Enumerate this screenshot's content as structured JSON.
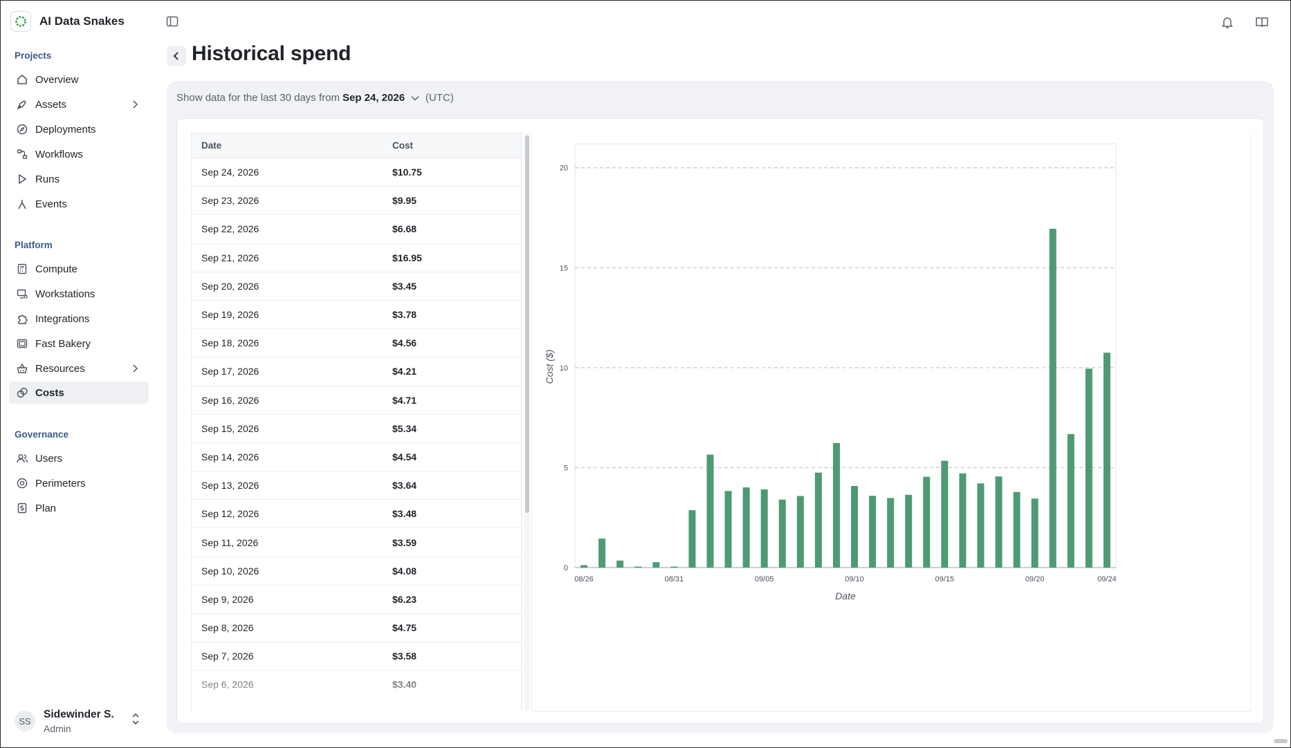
{
  "app": {
    "name": "AI Data Snakes"
  },
  "sidebar": {
    "sections": [
      {
        "label": "Projects",
        "items": [
          {
            "label": "Overview",
            "icon": "home-icon"
          },
          {
            "label": "Assets",
            "icon": "pen-nib-icon",
            "has_children": true
          },
          {
            "label": "Deployments",
            "icon": "compass-icon"
          },
          {
            "label": "Workflows",
            "icon": "workflow-icon"
          },
          {
            "label": "Runs",
            "icon": "play-icon"
          },
          {
            "label": "Events",
            "icon": "event-icon"
          }
        ]
      },
      {
        "label": "Platform",
        "items": [
          {
            "label": "Compute",
            "icon": "calculator-icon"
          },
          {
            "label": "Workstations",
            "icon": "workstation-icon"
          },
          {
            "label": "Integrations",
            "icon": "puzzle-icon"
          },
          {
            "label": "Fast Bakery",
            "icon": "bakery-icon"
          },
          {
            "label": "Resources",
            "icon": "basket-icon",
            "has_children": true
          },
          {
            "label": "Costs",
            "icon": "coins-icon",
            "active": true
          }
        ]
      },
      {
        "label": "Governance",
        "items": [
          {
            "label": "Users",
            "icon": "users-icon"
          },
          {
            "label": "Perimeters",
            "icon": "perimeter-icon"
          },
          {
            "label": "Plan",
            "icon": "dollar-doc-icon"
          }
        ]
      }
    ],
    "user": {
      "initials": "SS",
      "name": "Sidewinder S.",
      "role": "Admin"
    }
  },
  "header": {
    "title": "Historical spend"
  },
  "filter": {
    "prefix": "Show data for the last 30 days from",
    "date": "Sep 24, 2026",
    "timezone": "(UTC)"
  },
  "table": {
    "columns": [
      "Date",
      "Cost"
    ],
    "rows": [
      [
        "Sep 24, 2026",
        "$10.75"
      ],
      [
        "Sep 23, 2026",
        "$9.95"
      ],
      [
        "Sep 22, 2026",
        "$6.68"
      ],
      [
        "Sep 21, 2026",
        "$16.95"
      ],
      [
        "Sep 20, 2026",
        "$3.45"
      ],
      [
        "Sep 19, 2026",
        "$3.78"
      ],
      [
        "Sep 18, 2026",
        "$4.56"
      ],
      [
        "Sep 17, 2026",
        "$4.21"
      ],
      [
        "Sep 16, 2026",
        "$4.71"
      ],
      [
        "Sep 15, 2026",
        "$5.34"
      ],
      [
        "Sep 14, 2026",
        "$4.54"
      ],
      [
        "Sep 13, 2026",
        "$3.64"
      ],
      [
        "Sep 12, 2026",
        "$3.48"
      ],
      [
        "Sep 11, 2026",
        "$3.59"
      ],
      [
        "Sep 10, 2026",
        "$4.08"
      ],
      [
        "Sep 9, 2026",
        "$6.23"
      ],
      [
        "Sep 8, 2026",
        "$4.75"
      ],
      [
        "Sep 7, 2026",
        "$3.58"
      ],
      [
        "Sep 6, 2026",
        "$3.40"
      ]
    ]
  },
  "chart_data": {
    "type": "bar",
    "xlabel": "Date",
    "ylabel": "Cost ($)",
    "ylim": [
      0,
      21.2
    ],
    "yticks": [
      0,
      5,
      10,
      15,
      20
    ],
    "grid": "horizontal-dashed",
    "color": "#4e9a75",
    "categories": [
      "08/26",
      "08/27",
      "08/28",
      "08/29",
      "08/30",
      "08/31",
      "09/01",
      "09/02",
      "09/03",
      "09/04",
      "09/05",
      "09/06",
      "09/07",
      "09/08",
      "09/09",
      "09/10",
      "09/11",
      "09/12",
      "09/13",
      "09/14",
      "09/15",
      "09/16",
      "09/17",
      "09/18",
      "09/19",
      "09/20",
      "09/21",
      "09/22",
      "09/23",
      "09/24"
    ],
    "xtick_labels": [
      "08/26",
      "08/31",
      "09/05",
      "09/10",
      "09/15",
      "09/20",
      "09/24"
    ],
    "values": [
      0.12,
      1.45,
      0.35,
      0.05,
      0.27,
      0.05,
      2.87,
      5.65,
      3.83,
      4.01,
      3.91,
      3.4,
      3.58,
      4.75,
      6.23,
      4.08,
      3.59,
      3.48,
      3.64,
      4.54,
      5.34,
      4.71,
      4.21,
      4.56,
      3.78,
      3.45,
      16.95,
      6.68,
      9.95,
      10.75
    ]
  }
}
